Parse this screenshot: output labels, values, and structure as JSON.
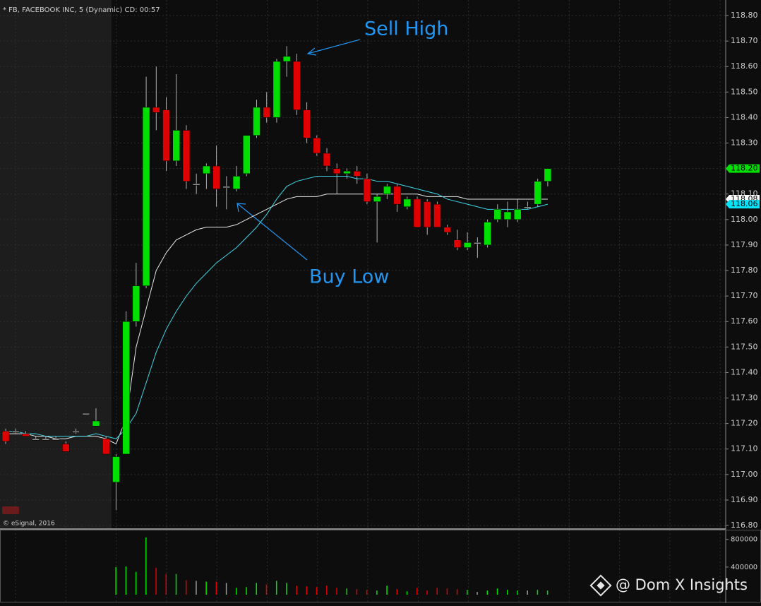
{
  "chart_data": [
    {
      "type": "candlestick",
      "title": "* FB, FACEBOOK INC, 5 (Dynamic) CD: 00:57",
      "source": "© eSignal, 2016",
      "up_color": "#00e000",
      "down_color": "#e00000",
      "flat_color": "#9a9a9a",
      "open": [
        117.17,
        117.17,
        117.16,
        117.14,
        117.14,
        117.14,
        117.12,
        117.17,
        117.24,
        117.19,
        117.14,
        116.97,
        117.08,
        117.6,
        117.74,
        118.44,
        118.43,
        118.23,
        118.35,
        118.14,
        118.18,
        118.21,
        118.13,
        118.12,
        118.18,
        118.33,
        118.44,
        118.4,
        118.62,
        118.62,
        118.43,
        118.32,
        118.26,
        118.2,
        118.18,
        118.19,
        118.16,
        118.07,
        118.1,
        118.13,
        118.05,
        118.08,
        118.07,
        118.06,
        117.97,
        117.92,
        117.89,
        117.91,
        117.9,
        118.0,
        118.0,
        118.0,
        118.05,
        118.06,
        118.15
      ],
      "high": [
        117.18,
        117.18,
        117.17,
        117.15,
        117.15,
        117.15,
        117.13,
        117.18,
        117.24,
        117.26,
        117.15,
        117.08,
        117.64,
        117.83,
        118.56,
        118.6,
        118.48,
        118.57,
        118.37,
        118.18,
        118.22,
        118.29,
        118.17,
        118.21,
        118.33,
        118.47,
        118.5,
        118.63,
        118.68,
        118.65,
        118.46,
        118.33,
        118.28,
        118.22,
        118.2,
        118.21,
        118.18,
        118.1,
        118.14,
        118.14,
        118.09,
        118.09,
        118.08,
        118.07,
        117.98,
        117.96,
        117.95,
        117.93,
        118.0,
        118.06,
        118.07,
        118.08,
        118.07,
        118.16,
        118.2
      ],
      "low": [
        117.12,
        117.16,
        117.15,
        117.14,
        117.14,
        117.14,
        117.09,
        117.16,
        117.24,
        117.19,
        117.08,
        116.86,
        117.08,
        117.58,
        117.73,
        118.35,
        118.19,
        118.21,
        118.12,
        118.1,
        118.12,
        118.05,
        118.04,
        118.11,
        118.17,
        118.32,
        118.38,
        118.38,
        118.56,
        118.41,
        118.3,
        118.25,
        118.19,
        118.1,
        118.16,
        118.14,
        118.06,
        117.91,
        118.08,
        118.03,
        118.04,
        117.97,
        117.94,
        117.97,
        117.94,
        117.88,
        117.88,
        117.85,
        117.89,
        117.99,
        117.97,
        117.99,
        118.04,
        118.05,
        118.13
      ],
      "close": [
        117.13,
        117.17,
        117.15,
        117.14,
        117.14,
        117.14,
        117.09,
        117.17,
        117.24,
        117.21,
        117.08,
        117.07,
        117.6,
        117.74,
        118.44,
        118.42,
        118.23,
        118.35,
        118.15,
        118.14,
        118.21,
        118.12,
        118.13,
        118.17,
        118.33,
        118.44,
        118.4,
        118.62,
        118.64,
        118.43,
        118.32,
        118.26,
        118.21,
        118.18,
        118.19,
        118.17,
        118.07,
        118.09,
        118.13,
        118.06,
        118.08,
        117.97,
        117.97,
        117.97,
        117.95,
        117.89,
        117.91,
        117.91,
        117.99,
        118.04,
        118.03,
        118.04,
        118.05,
        118.15,
        118.2
      ],
      "series": [
        {
          "color": "#e8e8e8",
          "values": [
            117.16,
            117.16,
            117.16,
            117.15,
            117.15,
            117.14,
            117.14,
            117.15,
            117.15,
            117.15,
            117.14,
            117.12,
            117.22,
            117.5,
            117.65,
            117.8,
            117.87,
            117.92,
            117.94,
            117.96,
            117.97,
            117.97,
            117.97,
            117.98,
            118.0,
            118.02,
            118.04,
            118.06,
            118.08,
            118.09,
            118.09,
            118.09,
            118.1,
            118.1,
            118.1,
            118.1,
            118.1,
            118.1,
            118.1,
            118.1,
            118.1,
            118.1,
            118.09,
            118.09,
            118.09,
            118.09,
            118.08,
            118.08,
            118.08,
            118.08,
            118.08,
            118.08,
            118.08,
            118.08,
            118.08
          ]
        },
        {
          "color": "#3fd7e8",
          "values": [
            117.17,
            117.17,
            117.16,
            117.16,
            117.15,
            117.15,
            117.15,
            117.15,
            117.15,
            117.16,
            117.15,
            117.14,
            117.18,
            117.24,
            117.36,
            117.48,
            117.57,
            117.64,
            117.7,
            117.75,
            117.79,
            117.83,
            117.86,
            117.89,
            117.93,
            117.97,
            118.02,
            118.08,
            118.13,
            118.15,
            118.16,
            118.17,
            118.17,
            118.17,
            118.17,
            118.16,
            118.16,
            118.15,
            118.15,
            118.14,
            118.13,
            118.12,
            118.11,
            118.1,
            118.08,
            118.07,
            118.06,
            118.05,
            118.04,
            118.04,
            118.04,
            118.04,
            118.04,
            118.05,
            118.06
          ]
        }
      ],
      "ylim": [
        116.789,
        118.861
      ],
      "yticks": [
        {
          "value": 116.8,
          "label": "116.80"
        },
        {
          "value": 116.9,
          "label": "116.90"
        },
        {
          "value": 117.0,
          "label": "117.00"
        },
        {
          "value": 117.1,
          "label": "117.10"
        },
        {
          "value": 117.2,
          "label": "117.20"
        },
        {
          "value": 117.3,
          "label": "117.30"
        },
        {
          "value": 117.4,
          "label": "117.40"
        },
        {
          "value": 117.5,
          "label": "117.50"
        },
        {
          "value": 117.6,
          "label": "117.60"
        },
        {
          "value": 117.7,
          "label": "117.70"
        },
        {
          "value": 117.8,
          "label": "117.80"
        },
        {
          "value": 117.9,
          "label": "117.90"
        },
        {
          "value": 118.0,
          "label": "118.00"
        },
        {
          "value": 118.1,
          "label": "118.10"
        },
        {
          "value": 118.2,
          "label": "118.20"
        },
        {
          "value": 118.3,
          "label": "118.30"
        },
        {
          "value": 118.4,
          "label": "118.40"
        },
        {
          "value": 118.5,
          "label": "118.50"
        },
        {
          "value": 118.6,
          "label": "118.60"
        },
        {
          "value": 118.7,
          "label": "118.70"
        },
        {
          "value": 118.8,
          "label": "118.80"
        }
      ],
      "price_flags": [
        {
          "value": 118.08,
          "label": "118.08",
          "color": "#ffffff"
        },
        {
          "value": 118.06,
          "label": "118.06",
          "color": "#00e5ff"
        },
        {
          "value": 118.2,
          "label": "118.20",
          "color": "#00e000"
        }
      ],
      "annotations": [
        "Sell High",
        "Buy Low"
      ],
      "grid": true
    },
    {
      "type": "bar",
      "values": [
        0,
        0,
        0,
        0,
        0,
        0,
        0,
        0,
        0,
        0,
        0,
        400000,
        410000,
        330000,
        830000,
        390000,
        300000,
        300000,
        210000,
        200000,
        190000,
        190000,
        170000,
        100000,
        110000,
        170000,
        150000,
        200000,
        170000,
        130000,
        120000,
        110000,
        130000,
        100000,
        90000,
        80000,
        70000,
        60000,
        130000,
        80000,
        50000,
        100000,
        60000,
        100000,
        90000,
        80000,
        70000,
        40000,
        60000,
        90000,
        70000,
        60000,
        60000,
        70000,
        60000
      ],
      "ylim": [
        0,
        920000
      ],
      "yticks": [
        400000,
        800000
      ],
      "watermark": "@ Dom X Insights"
    }
  ]
}
